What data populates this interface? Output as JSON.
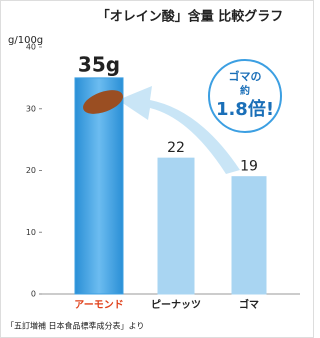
{
  "chart_data": {
    "type": "bar",
    "title": "「オレイン酸」含量 比較グラフ",
    "y_label": "g/100g",
    "categories": [
      "アーモンド",
      "ピーナッツ",
      "ゴマ"
    ],
    "values": [
      35,
      22,
      19
    ],
    "value_labels": [
      "35g",
      "22",
      "19"
    ],
    "colors": [
      "#3c9fe2",
      "#a9d5f2",
      "#a9d5f2"
    ],
    "category_colors": [
      "#e0421c",
      "#222222",
      "#222222"
    ],
    "ylim": [
      0,
      40
    ],
    "yticks": [
      0,
      10,
      20,
      30,
      40
    ],
    "annotation": [
      "ゴマの",
      "約",
      "1.8倍!"
    ],
    "source": "「五訂増補 日本食品標準成分表」より"
  }
}
